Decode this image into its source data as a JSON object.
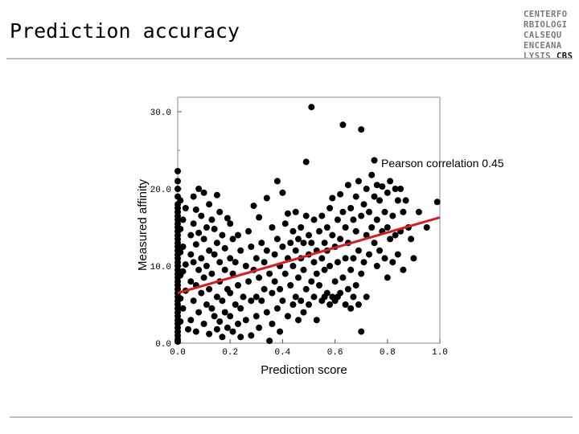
{
  "slide": {
    "title": "Prediction accuracy",
    "logo_lines": [
      "CENTERFO",
      "RBIOLOGI",
      "CALSEQU",
      "ENCEANA"
    ],
    "logo_last_plain": "LYSIS",
    "logo_last_accent": "CBS"
  },
  "chart_data": {
    "type": "scatter",
    "title": "",
    "xlabel": "Prediction score",
    "ylabel": "Measured affinity",
    "xlim": [
      0,
      1
    ],
    "ylim": [
      0,
      30
    ],
    "xticks": [
      "0.0",
      "0.2",
      "0.4",
      "0.6",
      "0.8",
      "1.0"
    ],
    "yticks": [
      "0.0",
      "10.0",
      "20.0",
      "30.0"
    ],
    "xtick_values": [
      0,
      0.2,
      0.4,
      0.6,
      0.8,
      1.0
    ],
    "ytick_values": [
      0,
      10,
      20,
      30
    ],
    "grid": false,
    "annotation": "Pearson correlation 0.45",
    "fit_line": {
      "x": [
        0,
        1
      ],
      "y": [
        6.5,
        16.3
      ]
    },
    "points": [
      [
        0,
        22.3
      ],
      [
        0,
        21
      ],
      [
        0,
        20
      ],
      [
        0,
        19
      ],
      [
        0,
        18
      ],
      [
        0,
        17.5
      ],
      [
        0,
        17
      ],
      [
        0,
        16.5
      ],
      [
        0,
        16
      ],
      [
        0,
        15.5
      ],
      [
        0,
        15
      ],
      [
        0,
        14.5
      ],
      [
        0,
        14
      ],
      [
        0,
        13.5
      ],
      [
        0,
        13
      ],
      [
        0,
        12.5
      ],
      [
        0,
        12
      ],
      [
        0,
        11.5
      ],
      [
        0,
        11
      ],
      [
        0,
        10.5
      ],
      [
        0,
        10
      ],
      [
        0,
        9.5
      ],
      [
        0,
        9
      ],
      [
        0,
        8.5
      ],
      [
        0,
        8
      ],
      [
        0,
        7.5
      ],
      [
        0,
        7
      ],
      [
        0,
        6.5
      ],
      [
        0,
        6
      ],
      [
        0,
        5.5
      ],
      [
        0,
        5
      ],
      [
        0,
        4.5
      ],
      [
        0,
        4
      ],
      [
        0,
        3.5
      ],
      [
        0,
        3
      ],
      [
        0,
        2.5
      ],
      [
        0,
        2
      ],
      [
        0,
        1.5
      ],
      [
        0,
        1
      ],
      [
        0,
        0.5
      ],
      [
        0,
        0.2
      ],
      [
        0.01,
        18.5
      ],
      [
        0.01,
        14.8
      ],
      [
        0.01,
        11.8
      ],
      [
        0.01,
        8.8
      ],
      [
        0.01,
        5.8
      ],
      [
        0.01,
        2.8
      ],
      [
        0.02,
        12.5
      ],
      [
        0.02,
        16
      ],
      [
        0.02,
        4.5
      ],
      [
        0.02,
        9.3
      ],
      [
        0.03,
        17.5
      ],
      [
        0.03,
        10.2
      ],
      [
        0.03,
        6.8
      ],
      [
        0.04,
        1.8
      ],
      [
        0.05,
        14
      ],
      [
        0.05,
        11.5
      ],
      [
        0.05,
        8
      ],
      [
        0.05,
        3
      ],
      [
        0.06,
        19
      ],
      [
        0.06,
        15.5
      ],
      [
        0.06,
        10.5
      ],
      [
        0.06,
        5.5
      ],
      [
        0.07,
        17.3
      ],
      [
        0.07,
        12.8
      ],
      [
        0.07,
        7.5
      ],
      [
        0.07,
        1.5
      ],
      [
        0.08,
        20
      ],
      [
        0.08,
        14.3
      ],
      [
        0.08,
        9.5
      ],
      [
        0.08,
        4
      ],
      [
        0.09,
        16.5
      ],
      [
        0.09,
        11
      ],
      [
        0.09,
        6.5
      ],
      [
        0.1,
        19.5
      ],
      [
        0.1,
        13.5
      ],
      [
        0.1,
        8.5
      ],
      [
        0.1,
        2.5
      ],
      [
        0.11,
        15
      ],
      [
        0.11,
        10
      ],
      [
        0.11,
        5
      ],
      [
        0.12,
        18
      ],
      [
        0.12,
        12
      ],
      [
        0.12,
        7
      ],
      [
        0.12,
        1.2
      ],
      [
        0.13,
        16
      ],
      [
        0.13,
        9
      ],
      [
        0.13,
        4.5
      ],
      [
        0.14,
        14.8
      ],
      [
        0.14,
        11.5
      ],
      [
        0.14,
        3.5
      ],
      [
        0.15,
        19.2
      ],
      [
        0.15,
        13
      ],
      [
        0.15,
        6
      ],
      [
        0.15,
        1.8
      ],
      [
        0.16,
        17
      ],
      [
        0.16,
        10.5
      ],
      [
        0.16,
        8
      ],
      [
        0.16,
        2.8
      ],
      [
        0.17,
        14
      ],
      [
        0.17,
        5.5
      ],
      [
        0.17,
        0.8
      ],
      [
        0.18,
        12.3
      ],
      [
        0.18,
        9.5
      ],
      [
        0.18,
        4
      ],
      [
        0.19,
        16.2
      ],
      [
        0.19,
        7
      ],
      [
        0.19,
        2
      ],
      [
        0.2,
        15.5
      ],
      [
        0.2,
        11
      ],
      [
        0.2,
        6.5
      ],
      [
        0.2,
        3.5
      ],
      [
        0.21,
        13.5
      ],
      [
        0.21,
        9
      ],
      [
        0.21,
        1.5
      ],
      [
        0.22,
        10.5
      ],
      [
        0.22,
        5
      ],
      [
        0.23,
        14
      ],
      [
        0.23,
        7.5
      ],
      [
        0.23,
        2.5
      ],
      [
        0.24,
        12
      ],
      [
        0.24,
        4.5
      ],
      [
        0.24,
        0.8
      ],
      [
        0.25,
        6
      ],
      [
        0.26,
        10
      ],
      [
        0.26,
        3
      ],
      [
        0.27,
        14.5
      ],
      [
        0.27,
        8
      ],
      [
        0.28,
        12.5
      ],
      [
        0.28,
        5.5
      ],
      [
        0.28,
        1
      ],
      [
        0.29,
        17.8
      ],
      [
        0.29,
        9.5
      ],
      [
        0.3,
        11
      ],
      [
        0.3,
        6
      ],
      [
        0.3,
        3.5
      ],
      [
        0.31,
        16.3
      ],
      [
        0.31,
        8.5
      ],
      [
        0.31,
        2
      ],
      [
        0.32,
        13
      ],
      [
        0.32,
        5.5
      ],
      [
        0.33,
        10.5
      ],
      [
        0.33,
        7
      ],
      [
        0.34,
        18.8
      ],
      [
        0.34,
        12
      ],
      [
        0.34,
        4
      ],
      [
        0.35,
        9
      ],
      [
        0.35,
        0.3
      ],
      [
        0.36,
        15
      ],
      [
        0.36,
        6.5
      ],
      [
        0.36,
        2.5
      ],
      [
        0.37,
        11.5
      ],
      [
        0.37,
        8
      ],
      [
        0.38,
        21
      ],
      [
        0.38,
        13.5
      ],
      [
        0.38,
        4.5
      ],
      [
        0.39,
        10
      ],
      [
        0.39,
        7
      ],
      [
        0.39,
        1.5
      ],
      [
        0.4,
        19.5
      ],
      [
        0.4,
        12.5
      ],
      [
        0.4,
        5.5
      ],
      [
        0.41,
        15.5
      ],
      [
        0.41,
        9
      ],
      [
        0.42,
        16.8
      ],
      [
        0.42,
        11
      ],
      [
        0.42,
        3.5
      ],
      [
        0.43,
        13
      ],
      [
        0.43,
        7.5
      ],
      [
        0.44,
        14.5
      ],
      [
        0.44,
        10
      ],
      [
        0.44,
        5
      ],
      [
        0.45,
        17
      ],
      [
        0.45,
        12
      ],
      [
        0.45,
        6
      ],
      [
        0.46,
        13.5
      ],
      [
        0.46,
        8.5
      ],
      [
        0.46,
        3
      ],
      [
        0.47,
        15
      ],
      [
        0.47,
        11
      ],
      [
        0.47,
        5.5
      ],
      [
        0.48,
        13
      ],
      [
        0.48,
        9.5
      ],
      [
        0.48,
        4
      ],
      [
        0.49,
        23.5
      ],
      [
        0.49,
        16.5
      ],
      [
        0.49,
        7
      ],
      [
        0.5,
        14
      ],
      [
        0.5,
        11.5
      ],
      [
        0.5,
        5
      ],
      [
        0.51,
        30.6
      ],
      [
        0.51,
        13
      ],
      [
        0.51,
        8
      ],
      [
        0.52,
        16
      ],
      [
        0.52,
        10.5
      ],
      [
        0.52,
        6
      ],
      [
        0.53,
        12
      ],
      [
        0.53,
        9
      ],
      [
        0.53,
        3
      ],
      [
        0.54,
        14.5
      ],
      [
        0.54,
        7.5
      ],
      [
        0.55,
        16.5
      ],
      [
        0.55,
        11
      ],
      [
        0.55,
        5.5
      ],
      [
        0.56,
        13
      ],
      [
        0.56,
        9.5
      ],
      [
        0.56,
        6
      ],
      [
        0.57,
        15
      ],
      [
        0.57,
        12
      ],
      [
        0.57,
        6.5
      ],
      [
        0.58,
        17.5
      ],
      [
        0.58,
        10
      ],
      [
        0.58,
        5
      ],
      [
        0.59,
        18.8
      ],
      [
        0.59,
        14
      ],
      [
        0.59,
        6
      ],
      [
        0.6,
        12.5
      ],
      [
        0.6,
        8
      ],
      [
        0.6,
        5.5
      ],
      [
        0.61,
        16
      ],
      [
        0.61,
        10.5
      ],
      [
        0.61,
        6
      ],
      [
        0.62,
        19.3
      ],
      [
        0.62,
        13.5
      ],
      [
        0.62,
        6.5
      ],
      [
        0.63,
        28.3
      ],
      [
        0.63,
        17
      ],
      [
        0.63,
        8.5
      ],
      [
        0.64,
        15
      ],
      [
        0.64,
        11
      ],
      [
        0.64,
        5
      ],
      [
        0.65,
        20.5
      ],
      [
        0.65,
        13
      ],
      [
        0.65,
        7
      ],
      [
        0.66,
        17.5
      ],
      [
        0.66,
        9.5
      ],
      [
        0.66,
        4.5
      ],
      [
        0.67,
        16
      ],
      [
        0.67,
        11
      ],
      [
        0.67,
        6
      ],
      [
        0.68,
        19
      ],
      [
        0.68,
        14.5
      ],
      [
        0.68,
        7.5
      ],
      [
        0.69,
        21
      ],
      [
        0.69,
        12
      ],
      [
        0.69,
        5
      ],
      [
        0.7,
        27.7
      ],
      [
        0.7,
        16.5
      ],
      [
        0.7,
        9
      ],
      [
        0.7,
        1.5
      ],
      [
        0.71,
        18
      ],
      [
        0.71,
        10.5
      ],
      [
        0.72,
        20
      ],
      [
        0.72,
        14
      ],
      [
        0.72,
        6
      ],
      [
        0.73,
        17
      ],
      [
        0.73,
        11.5
      ],
      [
        0.74,
        21.8
      ],
      [
        0.74,
        15
      ],
      [
        0.75,
        23.7
      ],
      [
        0.75,
        19
      ],
      [
        0.75,
        13
      ],
      [
        0.76,
        20.5
      ],
      [
        0.76,
        16
      ],
      [
        0.76,
        10
      ],
      [
        0.77,
        18.5
      ],
      [
        0.77,
        12
      ],
      [
        0.78,
        20.3
      ],
      [
        0.78,
        14.5
      ],
      [
        0.79,
        17
      ],
      [
        0.79,
        11
      ],
      [
        0.8,
        19.5
      ],
      [
        0.8,
        15
      ],
      [
        0.8,
        8.5
      ],
      [
        0.81,
        21
      ],
      [
        0.81,
        13.5
      ],
      [
        0.82,
        16.5
      ],
      [
        0.82,
        10.5
      ],
      [
        0.83,
        20
      ],
      [
        0.83,
        14
      ],
      [
        0.84,
        18.5
      ],
      [
        0.84,
        11.5
      ],
      [
        0.85,
        20
      ],
      [
        0.85,
        14.5
      ],
      [
        0.86,
        17
      ],
      [
        0.86,
        9.5
      ],
      [
        0.87,
        18.5
      ],
      [
        0.88,
        15
      ],
      [
        0.89,
        13.5
      ],
      [
        0.9,
        11
      ],
      [
        0.92,
        17
      ],
      [
        0.95,
        15
      ],
      [
        0.99,
        18.3
      ]
    ]
  }
}
